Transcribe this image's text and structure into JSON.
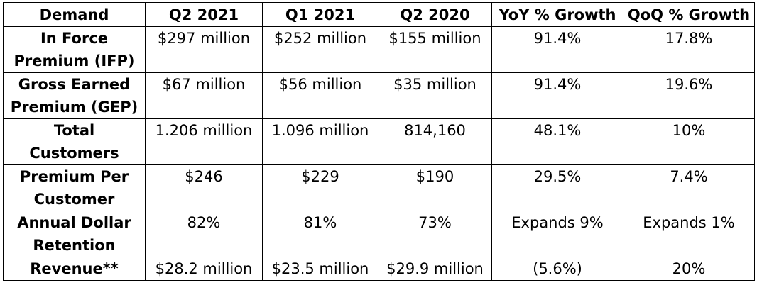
{
  "table": {
    "headers": [
      "Demand",
      "Q2 2021",
      "Q1 2021",
      "Q2 2020",
      "YoY % Growth",
      "QoQ % Growth"
    ],
    "rows": [
      {
        "metric_line1": "In Force",
        "metric_line2": "Premium (IFP)",
        "cells": [
          "$297 million",
          "$252 million",
          "$155 million",
          "91.4%",
          "17.8%"
        ]
      },
      {
        "metric_line1": "Gross Earned",
        "metric_line2": "Premium (GEP)",
        "cells": [
          "$67 million",
          "$56 million",
          "$35 million",
          "91.4%",
          "19.6%"
        ]
      },
      {
        "metric_line1": "Total",
        "metric_line2": "Customers",
        "cells": [
          "1.206 million",
          "1.096 million",
          "814,160",
          "48.1%",
          "10%"
        ]
      },
      {
        "metric_line1": "Premium Per",
        "metric_line2": "Customer",
        "cells": [
          "$246",
          "$229",
          "$190",
          "29.5%",
          "7.4%"
        ]
      },
      {
        "metric_line1": "Annual Dollar",
        "metric_line2": "Retention",
        "cells": [
          "82%",
          "81%",
          "73%",
          "Expands 9%",
          "Expands 1%"
        ]
      },
      {
        "metric_line1": "Revenue**",
        "metric_line2": "",
        "cells": [
          "$28.2 million",
          "$23.5 million",
          "$29.9 million",
          "(5.6%)",
          "20%"
        ]
      }
    ]
  }
}
